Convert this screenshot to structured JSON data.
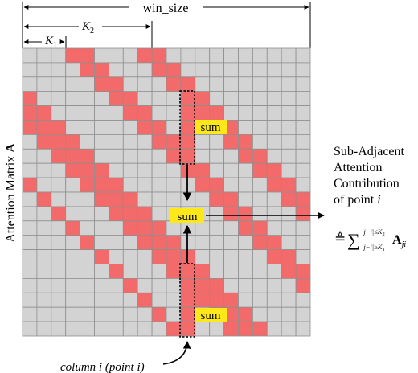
{
  "top": {
    "win_size_label": "win_size",
    "k2_label": "K",
    "k2_sub": "2",
    "k1_label": "K",
    "k1_sub": "1"
  },
  "matrix": {
    "axis_label": "Attention Matrix ",
    "axis_symbol": "A",
    "rows": 20,
    "cols": 20,
    "colors": {
      "cell": "#d3d3d3",
      "highlight": "#f26a6a",
      "grid": "#8f8f8f"
    },
    "highlighted_column": 11,
    "highlight_rule": {
      "k1": 3,
      "k2": 9
    }
  },
  "sum_labels": {
    "top": "sum",
    "middle": "sum",
    "bottom": "sum",
    "color": "#ffe819"
  },
  "caption": {
    "line1": "Sub-Adjacent",
    "line2": "Attention",
    "line3": "Contribution",
    "line4_prefix": "of point ",
    "line4_var": "i"
  },
  "formula": {
    "defeq": "≜",
    "sum": "∑",
    "upper": "|j−i|≤K",
    "upper_sub": "2",
    "lower": "|j−i|≥K",
    "lower_sub": "1",
    "term": "A",
    "term_sub": "ji"
  },
  "column_note": {
    "prefix": "column ",
    "var1": "i",
    "mid": " (point ",
    "var2": "i",
    "suffix": ")"
  }
}
